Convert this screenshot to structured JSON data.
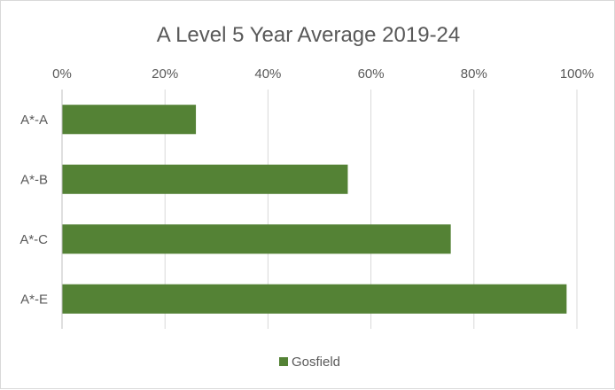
{
  "chart_data": {
    "type": "bar",
    "orientation": "horizontal",
    "title": "A Level 5 Year Average 2019-24",
    "categories": [
      "A*-A",
      "A*-B",
      "A*-C",
      "A*-E"
    ],
    "series": [
      {
        "name": "Gosfield",
        "color": "#548235",
        "values": [
          0.26,
          0.555,
          0.755,
          0.98
        ]
      }
    ],
    "x_ticks": [
      "0%",
      "20%",
      "40%",
      "60%",
      "80%",
      "100%"
    ],
    "xlim": [
      0,
      1
    ],
    "xlabel": "",
    "ylabel": "",
    "grid": true,
    "legend_position": "bottom"
  }
}
